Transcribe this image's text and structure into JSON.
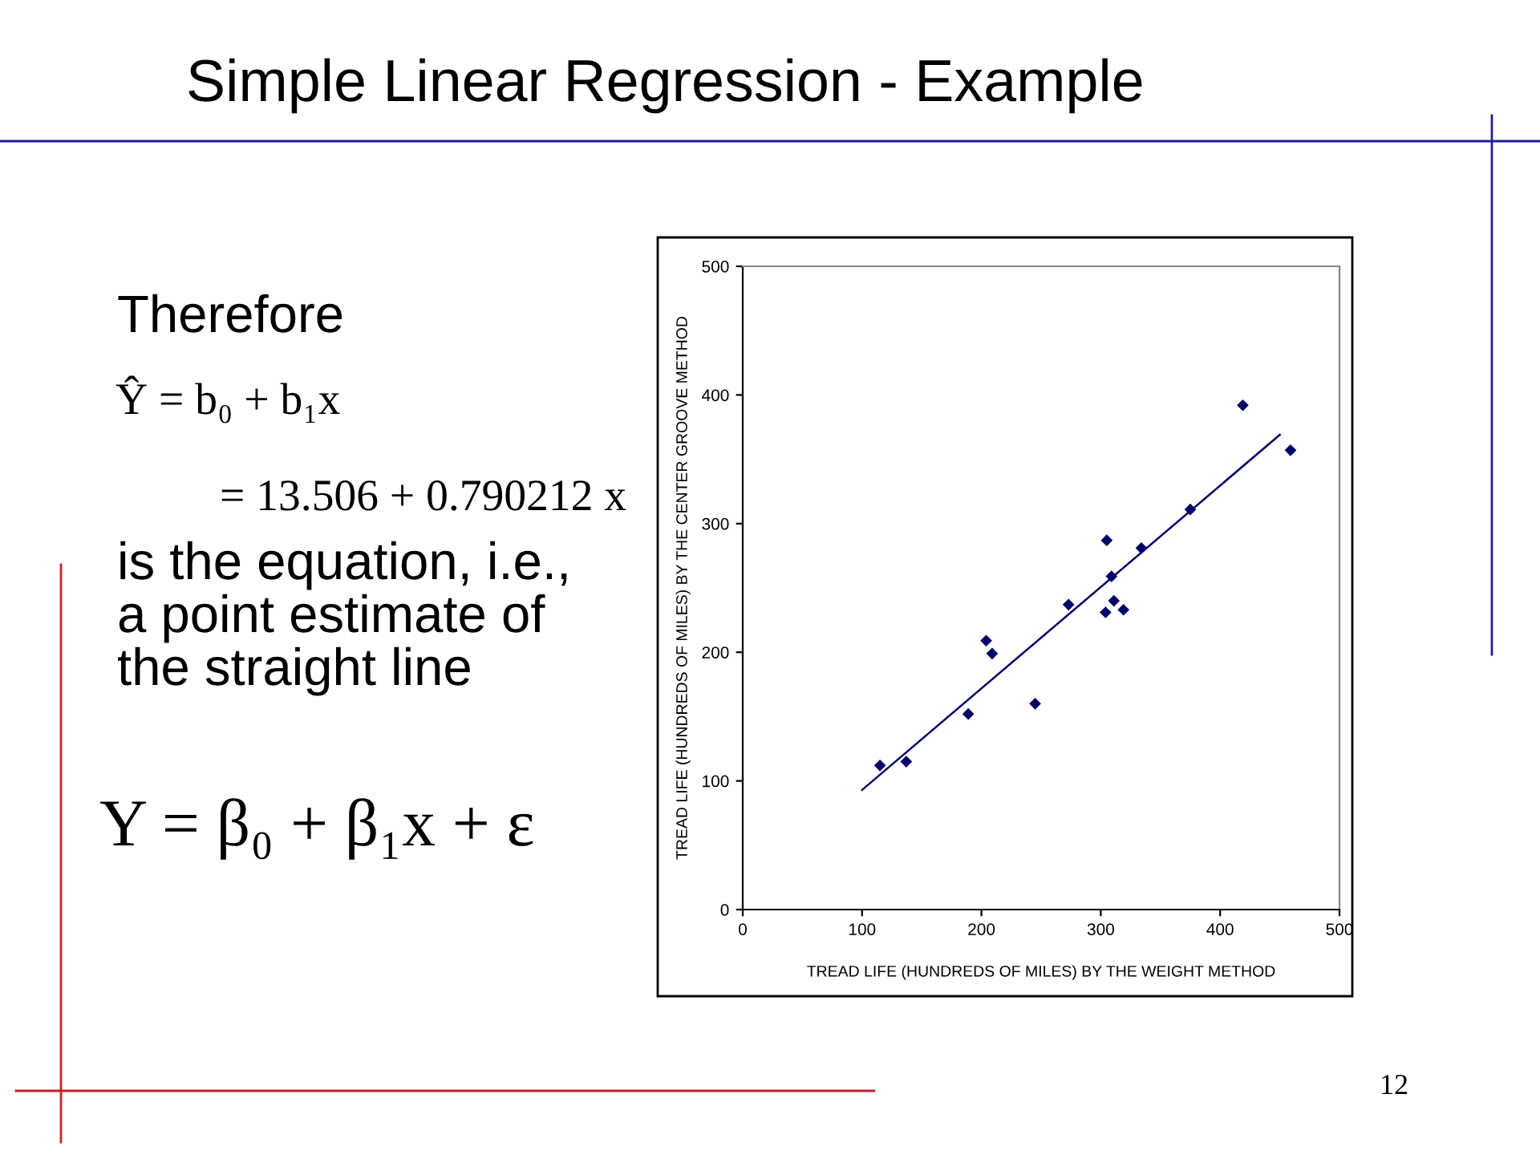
{
  "chart_data": {
    "type": "scatter",
    "title": "Simple Linear Regression - Example",
    "xlabel": "TREAD LIFE (HUNDREDS OF MILES) BY THE WEIGHT METHOD",
    "ylabel": "TREAD LIFE (HUNDREDS OF MILES) BY THE CENTER GROOVE METHOD",
    "series": [
      {
        "marker": "diamond",
        "color": "#000066",
        "x": [
          115,
          137,
          189,
          204,
          209,
          245,
          273,
          304,
          305,
          309,
          311,
          319,
          334,
          375,
          419,
          459
        ],
        "values": [
          112,
          115,
          152,
          209,
          199,
          160,
          237,
          231,
          287,
          259,
          240,
          233,
          281,
          311,
          392,
          357
        ]
      },
      {
        "type": "line",
        "color": "#000066",
        "x": [
          100,
          450
        ],
        "values": [
          93,
          369
        ]
      }
    ],
    "xlim": [
      0,
      500
    ],
    "ylim": [
      0,
      500
    ],
    "xticks": [
      0,
      100,
      200,
      300,
      400,
      500
    ],
    "yticks": [
      0,
      100,
      200,
      300,
      400,
      500
    ],
    "grid": false,
    "annotations": [
      "Therefore",
      "Ŷ = b₀ + b₁x",
      "= 13.506 + 0.790212 x",
      "is the equation, i.e.,",
      "a point estimate of",
      "the straight line",
      "Y = β₀ + β₁x + ε",
      "12"
    ]
  }
}
